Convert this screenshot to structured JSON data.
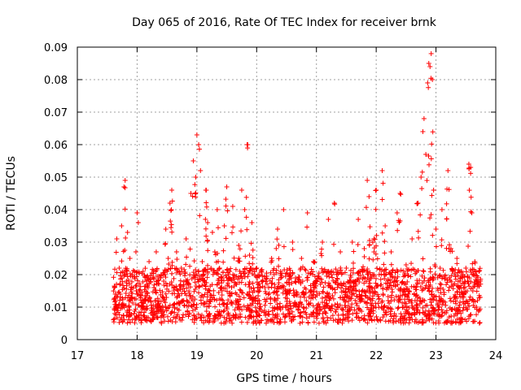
{
  "chart_data": {
    "type": "scatter",
    "title": "Day 065 of 2016, Rate Of TEC Index for receiver brnk",
    "xlabel": "GPS time / hours",
    "ylabel": "ROTI / TECUs",
    "xlim": [
      17,
      24
    ],
    "ylim": [
      0,
      0.09
    ],
    "xticks": [
      17,
      18,
      19,
      20,
      21,
      22,
      23,
      24
    ],
    "xtick_labels": [
      "17",
      "18",
      "19",
      "20",
      "21",
      "22",
      "23",
      "24"
    ],
    "yticks": [
      0,
      0.01,
      0.02,
      0.03,
      0.04,
      0.05,
      0.06,
      0.07,
      0.08,
      0.09
    ],
    "ytick_labels": [
      "0",
      "0.01",
      "0.02",
      "0.03",
      "0.04",
      "0.05",
      "0.06",
      "0.07",
      "0.08",
      "0.09"
    ],
    "grid": true,
    "marker": "+",
    "color": "#ff0000",
    "x_range_of_data": [
      17.6,
      23.75
    ],
    "series": [
      {
        "name": "ROTI",
        "points": [
          [
            17.62,
            0.016
          ],
          [
            17.64,
            0.012
          ],
          [
            17.66,
            0.031
          ],
          [
            17.68,
            0.009
          ],
          [
            17.7,
            0.022
          ],
          [
            17.72,
            0.014
          ],
          [
            17.74,
            0.035
          ],
          [
            17.76,
            0.011
          ],
          [
            17.78,
            0.047
          ],
          [
            17.8,
            0.049
          ],
          [
            17.82,
            0.018
          ],
          [
            17.84,
            0.033
          ],
          [
            17.86,
            0.01
          ],
          [
            17.88,
            0.025
          ],
          [
            17.9,
            0.013
          ],
          [
            17.92,
            0.02
          ],
          [
            17.95,
            0.008
          ],
          [
            17.98,
            0.027
          ],
          [
            18.0,
            0.039
          ],
          [
            18.02,
            0.036
          ],
          [
            18.05,
            0.015
          ],
          [
            18.08,
            0.01
          ],
          [
            18.1,
            0.021
          ],
          [
            18.13,
            0.012
          ],
          [
            18.16,
            0.018
          ],
          [
            18.2,
            0.024
          ],
          [
            18.24,
            0.009
          ],
          [
            18.28,
            0.016
          ],
          [
            18.32,
            0.027
          ],
          [
            18.36,
            0.011
          ],
          [
            18.4,
            0.02
          ],
          [
            18.44,
            0.013
          ],
          [
            18.48,
            0.034
          ],
          [
            18.52,
            0.025
          ],
          [
            18.55,
            0.042
          ],
          [
            18.58,
            0.046
          ],
          [
            18.62,
            0.016
          ],
          [
            18.66,
            0.027
          ],
          [
            18.7,
            0.011
          ],
          [
            18.74,
            0.022
          ],
          [
            18.78,
            0.012
          ],
          [
            18.82,
            0.031
          ],
          [
            18.86,
            0.017
          ],
          [
            18.9,
            0.045
          ],
          [
            18.94,
            0.055
          ],
          [
            18.98,
            0.05
          ],
          [
            19.0,
            0.063
          ],
          [
            19.03,
            0.06
          ],
          [
            19.06,
            0.052
          ],
          [
            19.09,
            0.024
          ],
          [
            19.12,
            0.018
          ],
          [
            19.15,
            0.046
          ],
          [
            19.18,
            0.036
          ],
          [
            19.22,
            0.012
          ],
          [
            19.26,
            0.033
          ],
          [
            19.3,
            0.027
          ],
          [
            19.34,
            0.04
          ],
          [
            19.38,
            0.022
          ],
          [
            19.42,
            0.015
          ],
          [
            19.46,
            0.035
          ],
          [
            19.5,
            0.047
          ],
          [
            19.55,
            0.021
          ],
          [
            19.6,
            0.041
          ],
          [
            19.65,
            0.012
          ],
          [
            19.7,
            0.029
          ],
          [
            19.75,
            0.046
          ],
          [
            19.8,
            0.04
          ],
          [
            19.84,
            0.06
          ],
          [
            19.88,
            0.026
          ],
          [
            19.92,
            0.036
          ],
          [
            19.96,
            0.015
          ],
          [
            20.0,
            0.022
          ],
          [
            20.05,
            0.011
          ],
          [
            20.1,
            0.018
          ],
          [
            20.15,
            0.008
          ],
          [
            20.2,
            0.016
          ],
          [
            20.25,
            0.025
          ],
          [
            20.3,
            0.012
          ],
          [
            20.35,
            0.034
          ],
          [
            20.4,
            0.021
          ],
          [
            20.45,
            0.04
          ],
          [
            20.5,
            0.014
          ],
          [
            20.55,
            0.007
          ],
          [
            20.6,
            0.03
          ],
          [
            20.65,
            0.019
          ],
          [
            20.7,
            0.01
          ],
          [
            20.75,
            0.025
          ],
          [
            20.8,
            0.013
          ],
          [
            20.85,
            0.039
          ],
          [
            20.9,
            0.015
          ],
          [
            20.95,
            0.024
          ],
          [
            21.0,
            0.018
          ],
          [
            21.05,
            0.008
          ],
          [
            21.1,
            0.03
          ],
          [
            21.15,
            0.013
          ],
          [
            21.2,
            0.037
          ],
          [
            21.25,
            0.02
          ],
          [
            21.3,
            0.042
          ],
          [
            21.35,
            0.011
          ],
          [
            21.4,
            0.027
          ],
          [
            21.45,
            0.015
          ],
          [
            21.5,
            0.022
          ],
          [
            21.55,
            0.009
          ],
          [
            21.6,
            0.03
          ],
          [
            21.65,
            0.018
          ],
          [
            21.7,
            0.037
          ],
          [
            21.75,
            0.012
          ],
          [
            21.8,
            0.028
          ],
          [
            21.85,
            0.049
          ],
          [
            21.88,
            0.044
          ],
          [
            21.92,
            0.016
          ],
          [
            21.96,
            0.031
          ],
          [
            22.0,
            0.046
          ],
          [
            22.05,
            0.02
          ],
          [
            22.1,
            0.052
          ],
          [
            22.15,
            0.035
          ],
          [
            22.2,
            0.012
          ],
          [
            22.25,
            0.027
          ],
          [
            22.3,
            0.018
          ],
          [
            22.35,
            0.039
          ],
          [
            22.4,
            0.045
          ],
          [
            22.45,
            0.01
          ],
          [
            22.5,
            0.023
          ],
          [
            22.55,
            0.015
          ],
          [
            22.6,
            0.031
          ],
          [
            22.65,
            0.012
          ],
          [
            22.7,
            0.042
          ],
          [
            22.75,
            0.05
          ],
          [
            22.78,
            0.064
          ],
          [
            22.8,
            0.068
          ],
          [
            22.83,
            0.057
          ],
          [
            22.86,
            0.079
          ],
          [
            22.88,
            0.085
          ],
          [
            22.9,
            0.084
          ],
          [
            22.92,
            0.088
          ],
          [
            22.94,
            0.08
          ],
          [
            22.96,
            0.046
          ],
          [
            22.98,
            0.023
          ],
          [
            23.0,
            0.034
          ],
          [
            23.05,
            0.012
          ],
          [
            23.1,
            0.04
          ],
          [
            23.15,
            0.019
          ],
          [
            23.2,
            0.052
          ],
          [
            23.25,
            0.028
          ],
          [
            23.3,
            0.013
          ],
          [
            23.35,
            0.025
          ],
          [
            23.4,
            0.018
          ],
          [
            23.45,
            0.009
          ],
          [
            23.5,
            0.022
          ],
          [
            23.55,
            0.054
          ],
          [
            23.58,
            0.053
          ],
          [
            23.6,
            0.039
          ],
          [
            23.62,
            0.016
          ],
          [
            23.65,
            0.024
          ],
          [
            23.68,
            0.01
          ],
          [
            23.7,
            0.018
          ],
          [
            23.72,
            0.021
          ],
          [
            23.74,
            0.013
          ]
        ]
      }
    ]
  }
}
